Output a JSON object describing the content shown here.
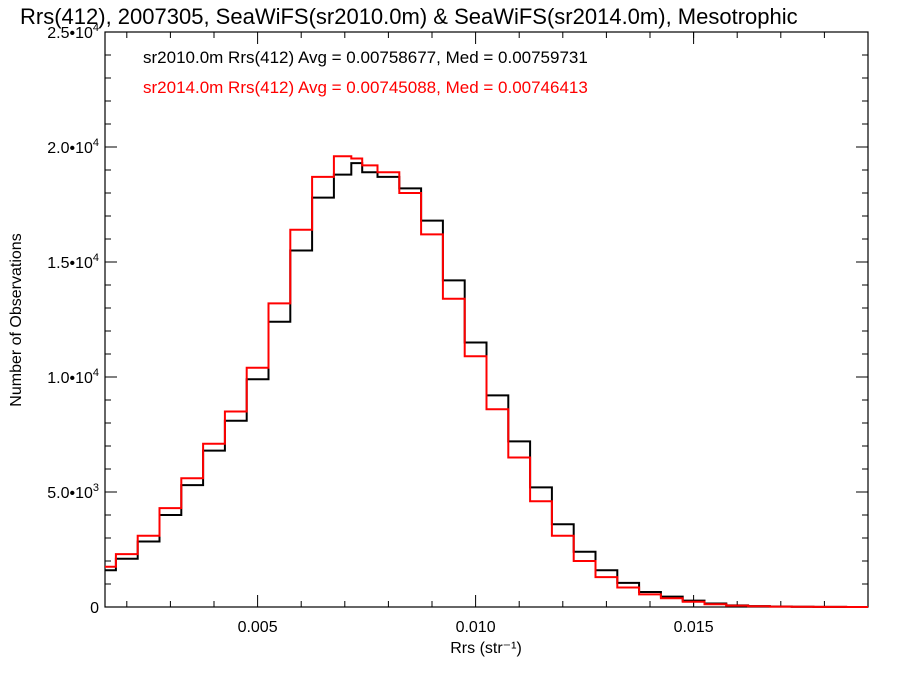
{
  "chart_data": {
    "type": "line",
    "title": "Rrs(412), 2007305, SeaWiFS(sr2010.0m) & SeaWiFS(sr2014.0m), Mesotrophic",
    "xlabel": "Rrs (str⁻¹)",
    "ylabel": "Number of Observations",
    "xlim": [
      0.0015,
      0.019
    ],
    "ylim": [
      0,
      25000
    ],
    "xticks": [
      {
        "value": 0.005,
        "label": "0.005"
      },
      {
        "value": 0.01,
        "label": "0.010"
      },
      {
        "value": 0.015,
        "label": "0.015"
      }
    ],
    "yticks": [
      {
        "value": 0,
        "mantissa": "0",
        "exponent": ""
      },
      {
        "value": 5000,
        "mantissa": "5.0•10",
        "exponent": "3"
      },
      {
        "value": 10000,
        "mantissa": "1.0•10",
        "exponent": "4"
      },
      {
        "value": 15000,
        "mantissa": "1.5•10",
        "exponent": "4"
      },
      {
        "value": 20000,
        "mantissa": "2.0•10",
        "exponent": "4"
      },
      {
        "value": 25000,
        "mantissa": "2.5•10",
        "exponent": "4"
      }
    ],
    "grid": false,
    "legend_placement": "top-left",
    "series": [
      {
        "name": "sr2010.0m",
        "color": "#000000",
        "annotation": "sr2010.0m Rrs(412) Avg = 0.00758677, Med = 0.00759731",
        "x": [
          0.0015,
          0.002,
          0.0025,
          0.003,
          0.0035,
          0.004,
          0.0045,
          0.005,
          0.0055,
          0.006,
          0.0065,
          0.007,
          0.0073,
          0.0075,
          0.008,
          0.0085,
          0.009,
          0.0095,
          0.01,
          0.0105,
          0.011,
          0.0115,
          0.012,
          0.0125,
          0.013,
          0.0135,
          0.014,
          0.0145,
          0.015,
          0.0155,
          0.016,
          0.0165,
          0.017,
          0.0175,
          0.018,
          0.019
        ],
        "y": [
          1600,
          2100,
          2850,
          4000,
          5300,
          6800,
          8100,
          9900,
          12400,
          15500,
          17800,
          18800,
          19300,
          18900,
          18700,
          18200,
          16800,
          14200,
          11500,
          9200,
          7200,
          5200,
          3600,
          2400,
          1600,
          1050,
          650,
          450,
          280,
          150,
          70,
          40,
          20,
          10,
          5,
          0
        ]
      },
      {
        "name": "sr2014.0m",
        "color": "#ff0000",
        "annotation": "sr2014.0m Rrs(412) Avg = 0.00745088, Med = 0.00746413",
        "x": [
          0.0015,
          0.002,
          0.0025,
          0.003,
          0.0035,
          0.004,
          0.0045,
          0.005,
          0.0055,
          0.006,
          0.0065,
          0.007,
          0.0073,
          0.0075,
          0.008,
          0.0085,
          0.009,
          0.0095,
          0.01,
          0.0105,
          0.011,
          0.0115,
          0.012,
          0.0125,
          0.013,
          0.0135,
          0.014,
          0.0145,
          0.015,
          0.0155,
          0.016,
          0.0165,
          0.017,
          0.0175,
          0.018,
          0.019
        ],
        "y": [
          1750,
          2300,
          3100,
          4300,
          5600,
          7100,
          8500,
          10400,
          13200,
          16400,
          18700,
          19600,
          19500,
          19200,
          18900,
          18000,
          16200,
          13400,
          10900,
          8600,
          6500,
          4600,
          3100,
          2000,
          1300,
          850,
          550,
          380,
          230,
          120,
          60,
          35,
          18,
          8,
          4,
          0
        ]
      }
    ]
  }
}
